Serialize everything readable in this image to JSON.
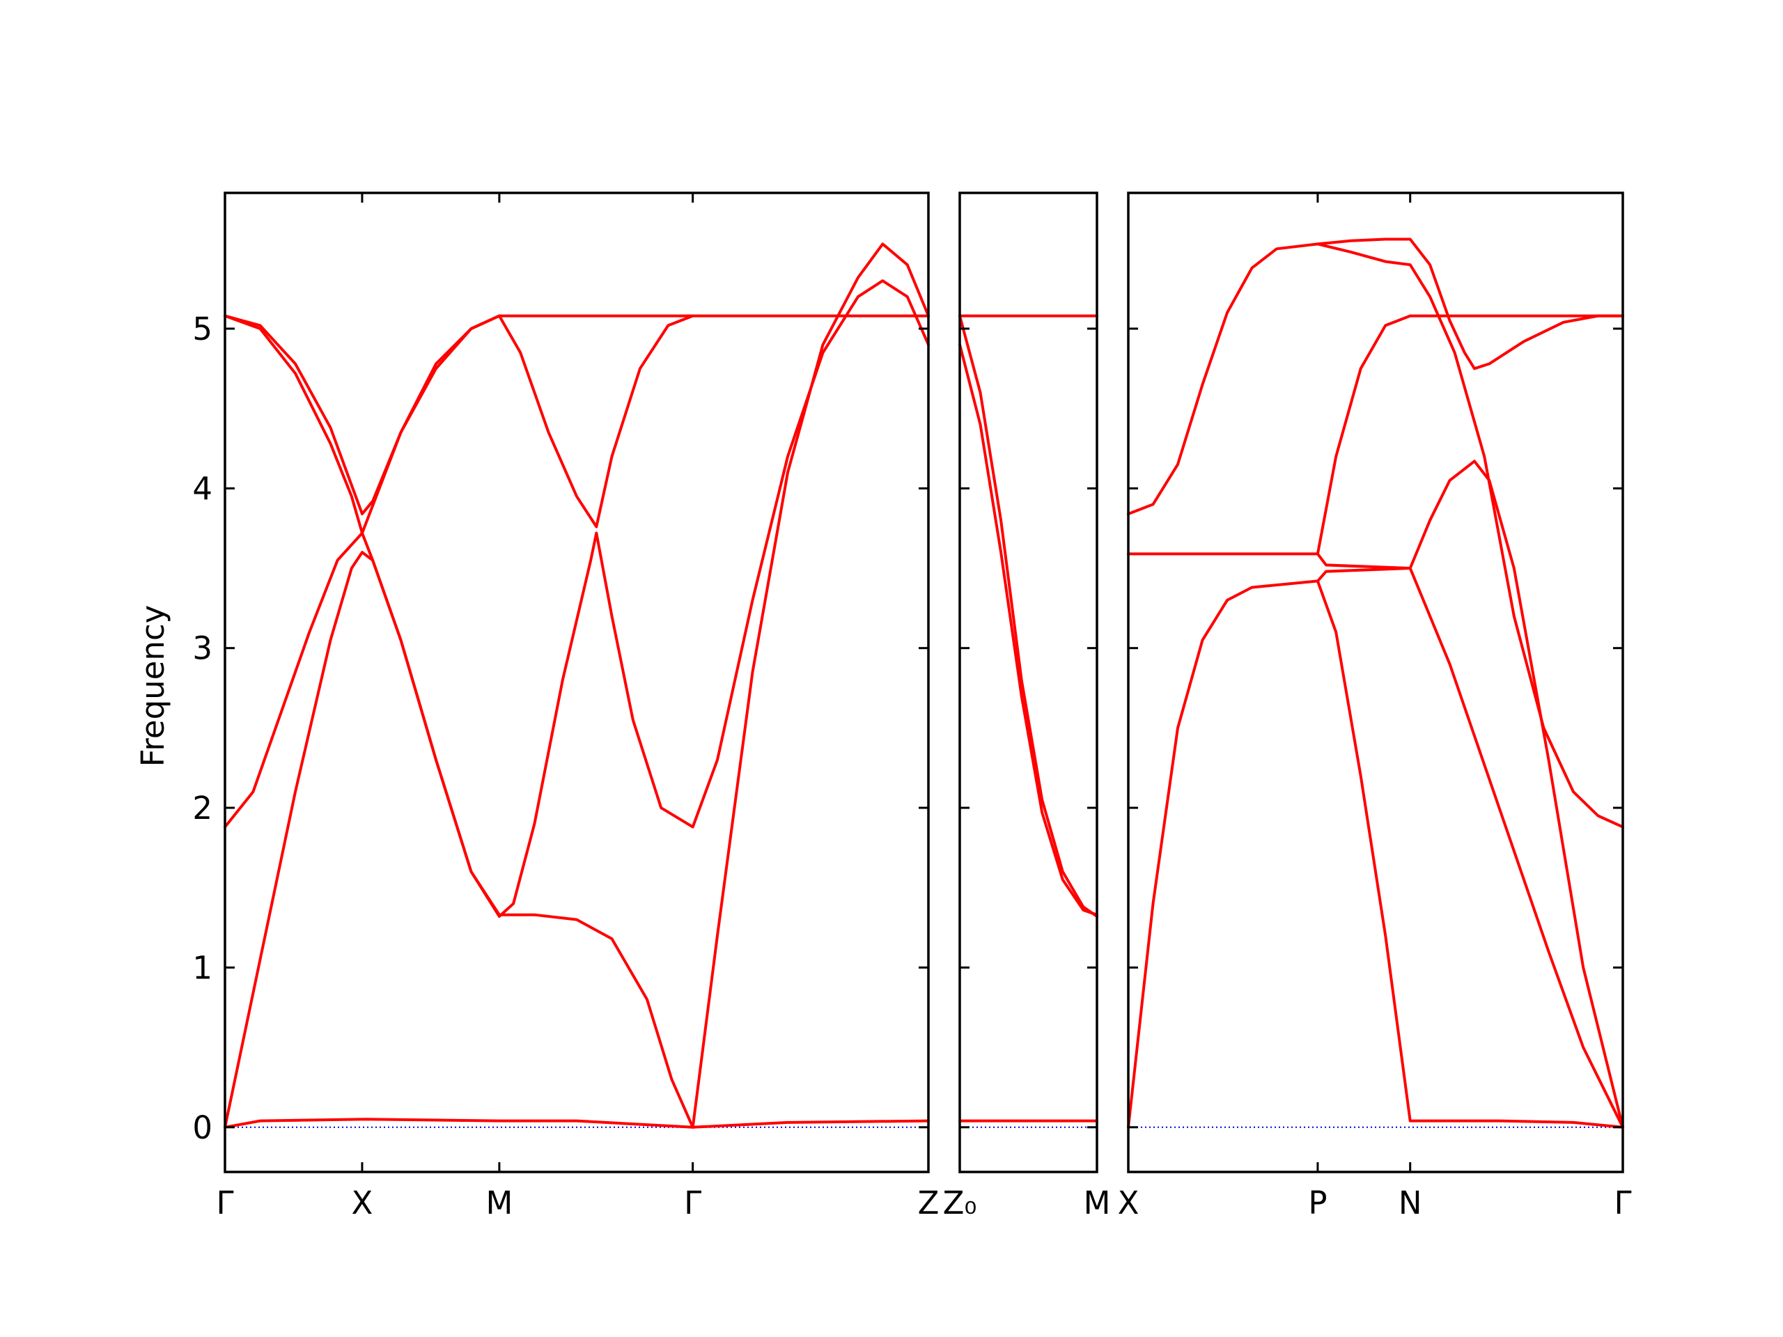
{
  "chart_data": {
    "type": "line",
    "ylabel": "Frequency",
    "ylim": [
      -0.28,
      5.85
    ],
    "yticks": [
      0,
      1,
      2,
      3,
      4,
      5
    ],
    "line_color": "#ff0000",
    "zero_line_color": "#0000cc",
    "grid": false,
    "panels": [
      {
        "xlim": [
          0,
          1.0
        ],
        "ticks": [
          {
            "pos": 0.0,
            "label": "Γ"
          },
          {
            "pos": 0.195,
            "label": "X"
          },
          {
            "pos": 0.39,
            "label": "M"
          },
          {
            "pos": 0.665,
            "label": "Γ"
          },
          {
            "pos": 1.0,
            "label": "Z"
          }
        ],
        "series": [
          {
            "points": [
              [
                0,
                5.08
              ],
              [
                0.05,
                5.0
              ],
              [
                0.1,
                4.72
              ],
              [
                0.15,
                4.28
              ],
              [
                0.18,
                3.95
              ],
              [
                0.195,
                3.72
              ],
              [
                0.21,
                3.55
              ],
              [
                0.25,
                3.05
              ],
              [
                0.3,
                2.3
              ],
              [
                0.35,
                1.6
              ],
              [
                0.39,
                1.32
              ],
              [
                0.41,
                1.4
              ],
              [
                0.44,
                1.9
              ],
              [
                0.48,
                2.8
              ],
              [
                0.52,
                3.55
              ],
              [
                0.528,
                3.72
              ],
              [
                0.55,
                3.2
              ],
              [
                0.58,
                2.55
              ],
              [
                0.62,
                2.0
              ],
              [
                0.665,
                1.88
              ],
              [
                0.7,
                2.3
              ],
              [
                0.75,
                3.3
              ],
              [
                0.8,
                4.2
              ],
              [
                0.85,
                4.85
              ],
              [
                0.9,
                5.2
              ],
              [
                0.935,
                5.3
              ],
              [
                0.97,
                5.2
              ],
              [
                1.0,
                4.9
              ]
            ]
          },
          {
            "points": [
              [
                0,
                5.08
              ],
              [
                0.05,
                5.02
              ],
              [
                0.1,
                4.78
              ],
              [
                0.15,
                4.38
              ],
              [
                0.18,
                4.02
              ],
              [
                0.195,
                3.84
              ],
              [
                0.21,
                3.92
              ],
              [
                0.25,
                4.35
              ],
              [
                0.3,
                4.75
              ],
              [
                0.35,
                5.0
              ],
              [
                0.39,
                5.08
              ],
              [
                0.42,
                4.85
              ],
              [
                0.46,
                4.35
              ],
              [
                0.5,
                3.95
              ],
              [
                0.528,
                3.76
              ],
              [
                0.55,
                4.2
              ],
              [
                0.59,
                4.75
              ],
              [
                0.63,
                5.02
              ],
              [
                0.665,
                5.08
              ]
            ]
          },
          {
            "points": [
              [
                0,
                1.88
              ],
              [
                0.04,
                2.1
              ],
              [
                0.08,
                2.6
              ],
              [
                0.12,
                3.1
              ],
              [
                0.16,
                3.55
              ],
              [
                0.195,
                3.72
              ],
              [
                0.25,
                4.35
              ],
              [
                0.3,
                4.78
              ],
              [
                0.35,
                5.0
              ],
              [
                0.39,
                5.08
              ],
              [
                1.0,
                5.08
              ]
            ]
          },
          {
            "points": [
              [
                0,
                0
              ],
              [
                0.05,
                1.05
              ],
              [
                0.1,
                2.1
              ],
              [
                0.15,
                3.05
              ],
              [
                0.18,
                3.5
              ],
              [
                0.195,
                3.6
              ],
              [
                0.21,
                3.55
              ],
              [
                0.25,
                3.05
              ],
              [
                0.3,
                2.3
              ],
              [
                0.35,
                1.6
              ],
              [
                0.39,
                1.33
              ],
              [
                0.44,
                1.33
              ],
              [
                0.5,
                1.3
              ],
              [
                0.55,
                1.18
              ],
              [
                0.6,
                0.8
              ],
              [
                0.635,
                0.3
              ],
              [
                0.665,
                0
              ]
            ]
          },
          {
            "points": [
              [
                0.665,
                0
              ],
              [
                0.7,
                1.2
              ],
              [
                0.75,
                2.85
              ],
              [
                0.8,
                4.1
              ],
              [
                0.85,
                4.9
              ],
              [
                0.9,
                5.32
              ],
              [
                0.935,
                5.53
              ],
              [
                0.97,
                5.4
              ],
              [
                1.0,
                5.08
              ]
            ]
          },
          {
            "points": [
              [
                0,
                0
              ],
              [
                0.05,
                0.04
              ],
              [
                0.2,
                0.05
              ],
              [
                0.39,
                0.04
              ],
              [
                0.5,
                0.04
              ],
              [
                0.665,
                0.0
              ],
              [
                0.8,
                0.03
              ],
              [
                1.0,
                0.04
              ]
            ]
          }
        ]
      },
      {
        "xlim": [
          0,
          1.0
        ],
        "ticks": [
          {
            "pos": 0.0,
            "label": "Z₀"
          },
          {
            "pos": 1.0,
            "label": "M"
          }
        ],
        "series": [
          {
            "points": [
              [
                0,
                5.08
              ],
              [
                1.0,
                5.08
              ]
            ]
          },
          {
            "points": [
              [
                0,
                5.08
              ],
              [
                0.15,
                4.6
              ],
              [
                0.3,
                3.8
              ],
              [
                0.45,
                2.8
              ],
              [
                0.6,
                2.05
              ],
              [
                0.75,
                1.6
              ],
              [
                0.9,
                1.38
              ],
              [
                1.0,
                1.32
              ]
            ]
          },
          {
            "points": [
              [
                0,
                4.9
              ],
              [
                0.15,
                4.4
              ],
              [
                0.3,
                3.6
              ],
              [
                0.45,
                2.7
              ],
              [
                0.6,
                1.97
              ],
              [
                0.75,
                1.55
              ],
              [
                0.9,
                1.36
              ],
              [
                1.0,
                1.33
              ]
            ]
          },
          {
            "points": [
              [
                0,
                0.04
              ],
              [
                1.0,
                0.04
              ]
            ]
          }
        ]
      },
      {
        "xlim": [
          0,
          1.0
        ],
        "ticks": [
          {
            "pos": 0.0,
            "label": "X"
          },
          {
            "pos": 0.383,
            "label": "P"
          },
          {
            "pos": 0.57,
            "label": "N"
          },
          {
            "pos": 1.0,
            "label": "Γ"
          }
        ],
        "series": [
          {
            "points": [
              [
                0,
                3.84
              ],
              [
                0.05,
                3.9
              ],
              [
                0.1,
                4.15
              ],
              [
                0.15,
                4.65
              ],
              [
                0.2,
                5.1
              ],
              [
                0.25,
                5.38
              ],
              [
                0.3,
                5.5
              ],
              [
                0.383,
                5.53
              ],
              [
                0.45,
                5.48
              ],
              [
                0.52,
                5.42
              ],
              [
                0.57,
                5.4
              ],
              [
                0.61,
                5.2
              ],
              [
                0.66,
                4.85
              ],
              [
                0.72,
                4.2
              ],
              [
                0.78,
                3.2
              ],
              [
                0.84,
                2.5
              ],
              [
                0.9,
                2.1
              ],
              [
                0.95,
                1.95
              ],
              [
                1.0,
                1.88
              ]
            ]
          },
          {
            "points": [
              [
                0.383,
                5.53
              ],
              [
                0.45,
                5.55
              ],
              [
                0.52,
                5.56
              ],
              [
                0.57,
                5.56
              ],
              [
                0.61,
                5.4
              ],
              [
                0.65,
                5.05
              ],
              [
                0.68,
                4.85
              ],
              [
                0.7,
                4.75
              ],
              [
                0.73,
                4.78
              ],
              [
                0.8,
                4.92
              ],
              [
                0.88,
                5.04
              ],
              [
                0.95,
                5.08
              ],
              [
                1.0,
                5.08
              ]
            ]
          },
          {
            "points": [
              [
                0,
                3.59
              ],
              [
                0.383,
                3.59
              ],
              [
                0.4,
                3.52
              ],
              [
                0.57,
                3.5
              ]
            ]
          },
          {
            "points": [
              [
                0.383,
                3.59
              ],
              [
                0.42,
                4.2
              ],
              [
                0.47,
                4.75
              ],
              [
                0.52,
                5.02
              ],
              [
                0.57,
                5.08
              ],
              [
                1.0,
                5.08
              ]
            ]
          },
          {
            "points": [
              [
                0,
                0
              ],
              [
                0.05,
                1.4
              ],
              [
                0.1,
                2.5
              ],
              [
                0.15,
                3.05
              ],
              [
                0.2,
                3.3
              ],
              [
                0.25,
                3.38
              ],
              [
                0.383,
                3.42
              ],
              [
                0.4,
                3.48
              ],
              [
                0.57,
                3.5
              ]
            ]
          },
          {
            "points": [
              [
                0.57,
                3.5
              ],
              [
                0.61,
                3.8
              ],
              [
                0.65,
                4.05
              ],
              [
                0.7,
                4.17
              ],
              [
                0.73,
                4.05
              ],
              [
                0.78,
                3.5
              ],
              [
                0.85,
                2.3
              ],
              [
                0.92,
                1.0
              ],
              [
                1.0,
                0
              ]
            ]
          },
          {
            "points": [
              [
                0.57,
                3.5
              ],
              [
                0.65,
                2.9
              ],
              [
                0.75,
                2.0
              ],
              [
                0.85,
                1.1
              ],
              [
                0.92,
                0.5
              ],
              [
                1.0,
                0
              ]
            ]
          },
          {
            "points": [
              [
                0.383,
                3.42
              ],
              [
                0.42,
                3.1
              ],
              [
                0.47,
                2.2
              ],
              [
                0.52,
                1.2
              ],
              [
                0.57,
                0.04
              ],
              [
                0.75,
                0.04
              ],
              [
                0.9,
                0.03
              ],
              [
                1.0,
                0
              ]
            ]
          }
        ]
      }
    ]
  }
}
